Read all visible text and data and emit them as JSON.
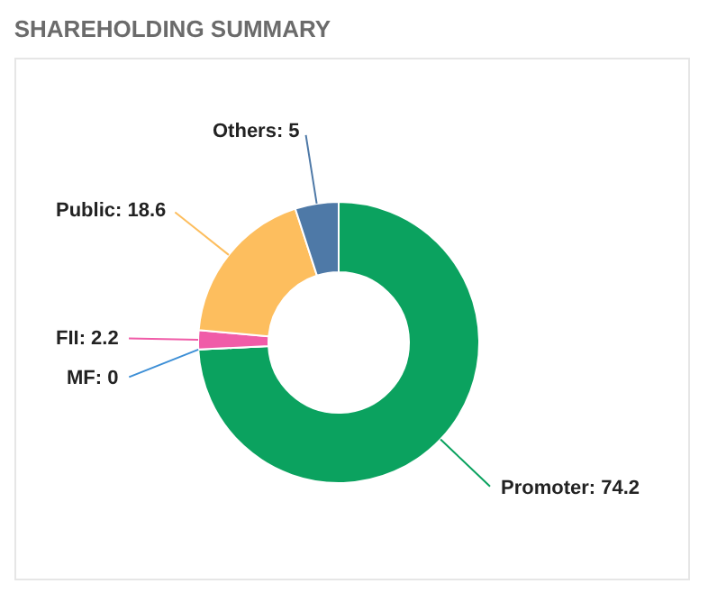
{
  "chart_data": {
    "type": "donut",
    "title": "SHAREHOLDING SUMMARY",
    "categories": [
      "Promoter: 74.2",
      "MF: 0",
      "FII: 2.2",
      "Public: 18.6",
      "Others: 5"
    ],
    "values": [
      74.2,
      0,
      2.2,
      18.6,
      5
    ],
    "colors": [
      "#0ba25f",
      "#3d8fd6",
      "#f05ca8",
      "#fdbe5e",
      "#4e79a7"
    ],
    "legend": false
  }
}
